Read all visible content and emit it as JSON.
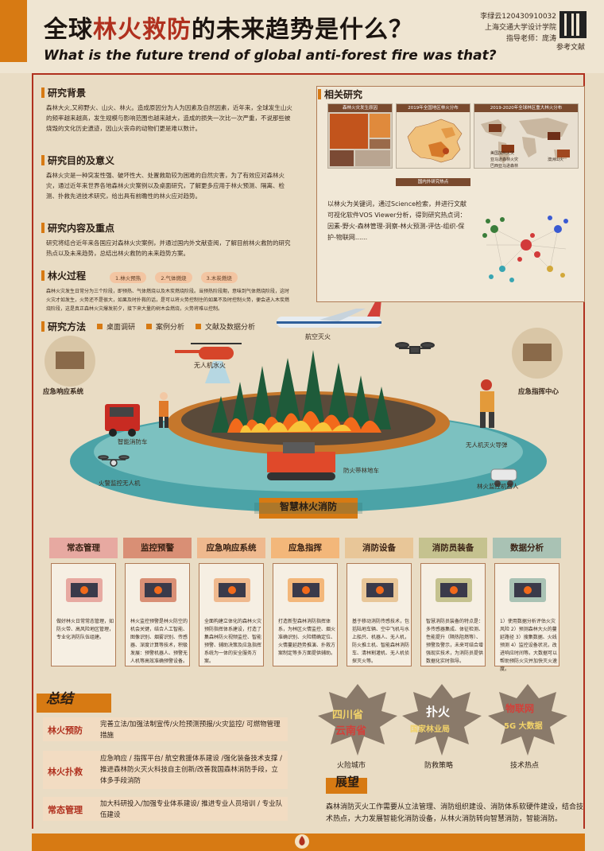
{
  "header": {
    "title_part1": "全球",
    "title_highlight": "林火救防",
    "title_part2": "的未来趋势是什么？",
    "title_en": "What is the future trend of global anti-forest fire was that?",
    "author_line1": "李绿云120430910032",
    "author_line2": "上海交通大学设计学院",
    "author_line3": "指导老师：庞涛",
    "references_label": "参考文献"
  },
  "background": {
    "heading": "研究背景",
    "text": "森林大火,又称野火、山火、林火。造成原因分为人为因素及自然因素，近年来，全球发生山火的频率越来越高，发生规模与影响范围也越来越大，造成的损失一次比一次严重，不说那些被烧毁的文化历史遗迹，因山火丧命的动物们更是难以数计。"
  },
  "purpose": {
    "heading": "研究目的及意义",
    "text": "森林火灾是一种突发性强、破坏性大、处置救助较为困难的自然灾害，为了有效应对森林火灾，通过近年来世界各地森林火灾案例以及桌面研究，了解更多应用于林火预测、隔离、检测、扑救先进技术研究，给出具有前瞻性的林火应对趋势。"
  },
  "content": {
    "heading": "研究内容及重点",
    "text": "研究将结合近年来各国应对森林火灾案例，并通过国内外文献查阅，了解目前林火救防的研究热点以及未来趋势，总结出林火救防的未来趋势方案。"
  },
  "fire_process": {
    "heading": "林火过程",
    "stages": [
      "1.林火预热",
      "2.气体燃烧",
      "3.木炭燃烧"
    ],
    "text": "森林火灾发生日常分为三个阶段，即预热、气体燃烧以及木炭燃烧阶段。当预热阶段期，意味到气体燃烧阶段，这时火灾才如发生，火势还不是很大，如果及时扑救的话，是可以将火势控制住的如果不及时控制火势，便会进入木炭燃烧阶段，这是真正森林火灾爆发前夕，接下来大量的树木会燃烧，火势将难以控制。"
  },
  "methods": {
    "heading": "研究方法",
    "items": [
      "桌面调研",
      "案例分析",
      "文献及数据分析"
    ]
  },
  "related": {
    "heading": "相关研究",
    "panel1_caption": "森林火灾发生原因",
    "panel2_caption": "2019年全国地区林火分布",
    "panel3_caption": "2019-2020年全球林区重大林火分布",
    "panel4_caption": "国内外研究热点",
    "world_labels": [
      "美国加州火灾",
      "亚马逊森林火灾",
      "巴西亚马逊森林",
      "澳洲山火"
    ],
    "text": "以林火为关键词，通过Science检索，并进行文献可视化软件VOS Viewer分析，得到研究热点词：因素-野火-森林管理-洞察-林火预测-评估-组织-保护-物联网......"
  },
  "scene": {
    "title": "智慧林火消防",
    "labels": {
      "plane": "航空灭火",
      "helicopter": "无人机水火",
      "emergency_system": "应急响应系统",
      "command_center": "应急指挥中心",
      "fire_truck": "智能消防车",
      "drone_left": "火警监控无人机",
      "firebreak": "防火带林地车",
      "drone_right": "无人机灭火导弹",
      "robot": "林火监控机器人"
    }
  },
  "columns": [
    {
      "title": "常态管理",
      "text": "做好林火日常常态管理，如防火带、高风险地区管理，专业化消防队伍组建。",
      "color": "#e7a9a1"
    },
    {
      "title": "监控预警",
      "text": "林火监控预警是林火防空的机会关键，结合人工智能、图像识别、烟雾识别、传感器、深度计算等技术，积极发展：预警机器人、预警无人机等高效准确预警设备。",
      "color": "#d98f75"
    },
    {
      "title": "应急响应系统",
      "text": "全面构建立体化的森林火灾预防指挥体系建设，打造了集森林防火视频监控、智能预警、辅助决策及应急指挥系统为一体的安全服务方案。",
      "color": "#efb98e"
    },
    {
      "title": "应急指挥",
      "text": "打造新型森林消防指挥体系，为林区火情监控、烟火准确识别、火险精确定位、火情蔓延趋势推演、扑救方案制定等多方面提供辅助。",
      "color": "#f3b77a"
    },
    {
      "title": "消防设备",
      "text": "基于移动消防传感技术，包括陆地车辆、空中飞机与水上船只、机器人、无人机，防火推土机、智能森林消防车、清林割灌机、无人机侦探灭火等。",
      "color": "#e8c698"
    },
    {
      "title": "消防员装备",
      "text": "智慧消防员装备的特点是：多传感器集成、体征检测、性能提升（隔热阻燃等）、预警及警示，未来可结合增强现实技术，为消防员提供数据化实时指导。",
      "color": "#c5c28f"
    },
    {
      "title": "数据分析",
      "text": "1）使用数据分析评估火灾风险 2）预测森林大火的蔓延路径 3）搜集数据、火线预测 4）监控设备状况，改进响应时间等。大数据可以帮助预防火灾并加快灭火速度。",
      "color": "#a9c2b4"
    }
  ],
  "summary": {
    "heading": "总结",
    "rows": [
      {
        "label": "林火预防",
        "text": "完善立法/加强法制宣传/火险预测预报/火灾监控/ 可燃物管理措施"
      },
      {
        "label": "林火扑救",
        "text": "应急响应 / 指挥平台/ 航空救援体系建设 /强化装备技术支撑 / 推进森林防火灭火科技自主创新/改善我国森林消防手段，立体多手段消防"
      },
      {
        "label": "常态管理",
        "text": "加大科研投入/加强专业体系建设/ 推进专业人员培训 / 专业队伍建设"
      }
    ]
  },
  "leaves": [
    {
      "caption": "火险城市",
      "words": [
        "四川省",
        "云南省"
      ]
    },
    {
      "caption": "防救策略",
      "words": [
        "扑火",
        "国家林业局"
      ]
    },
    {
      "caption": "技术热点",
      "words": [
        "物联网",
        "5G 大数据"
      ]
    }
  ],
  "outlook": {
    "heading": "展望",
    "text": "森林消防灭火工作需要从立法管理、消防组织建设、消防体系软硬件建设，结合技术热点，大力发展智能化消防设备，从林火消防转向智慧消防，智能消防。"
  }
}
